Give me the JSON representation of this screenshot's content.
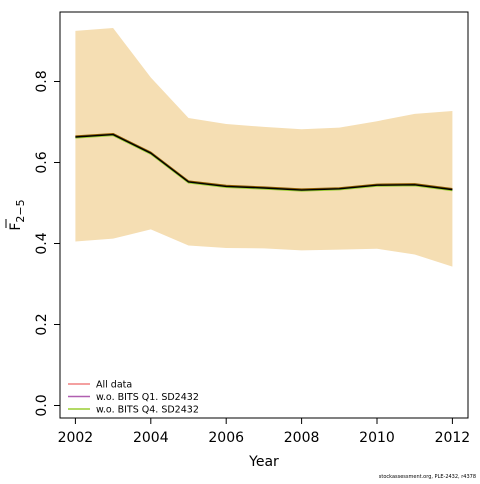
{
  "chart_data": {
    "type": "line",
    "title": "",
    "xlabel": "Year",
    "ylabel": "F̄ 2-5",
    "ylabel_main": "F",
    "ylabel_sub": "2−5",
    "xlim": [
      2002,
      2012
    ],
    "ylim": [
      0,
      0.95
    ],
    "x_ticks": [
      2002,
      2004,
      2006,
      2008,
      2010,
      2012
    ],
    "y_ticks": [
      0.0,
      0.2,
      0.4,
      0.6,
      0.8
    ],
    "y_tick_labels": [
      "0.0",
      "0.2",
      "0.4",
      "0.6",
      "0.8"
    ],
    "grid": false,
    "legend_position": "bottom-left",
    "x": [
      2002,
      2003,
      2004,
      2005,
      2006,
      2007,
      2008,
      2009,
      2010,
      2011,
      2012
    ],
    "band": {
      "color": "#f5deb3",
      "lower": [
        0.405,
        0.412,
        0.435,
        0.395,
        0.389,
        0.388,
        0.383,
        0.385,
        0.387,
        0.373,
        0.343
      ],
      "upper": [
        0.925,
        0.932,
        0.81,
        0.71,
        0.695,
        0.688,
        0.682,
        0.686,
        0.702,
        0.72,
        0.727
      ]
    },
    "series": [
      {
        "name": "All data",
        "color": "#000000",
        "values": [
          0.663,
          0.669,
          0.623,
          0.552,
          0.541,
          0.537,
          0.532,
          0.535,
          0.544,
          0.545,
          0.533
        ]
      },
      {
        "name": "w.o. BITS Q1. SD2432",
        "color": "#8b5a00",
        "values": [
          0.665,
          0.671,
          0.625,
          0.554,
          0.543,
          0.539,
          0.534,
          0.537,
          0.546,
          0.547,
          0.535
        ]
      },
      {
        "name": "w.o. BITS Q4. SD2432",
        "color": "#9acd32",
        "values": [
          0.661,
          0.667,
          0.621,
          0.55,
          0.539,
          0.535,
          0.53,
          0.533,
          0.542,
          0.543,
          0.531
        ]
      }
    ],
    "legend": [
      {
        "label": "All data",
        "color": "#f08080"
      },
      {
        "label": "w.o. BITS Q1. SD2432",
        "color": "#b05fb0"
      },
      {
        "label": "w.o. BITS Q4. SD2432",
        "color": "#9acd32"
      }
    ],
    "footer": "stockassessment.org, PLE-2432, r4378"
  }
}
